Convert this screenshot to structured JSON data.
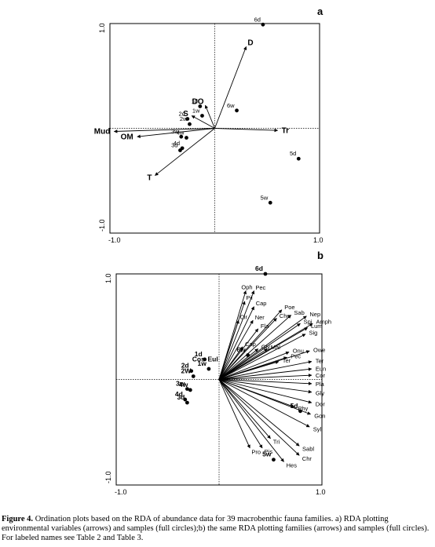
{
  "figure": {
    "caption_label": "Figure 4.",
    "caption_text": " Ordination plots based on the RDA of abundance data for 39 macrobenthic fauna families. a) RDA plotting environmental variables (arrows) and samples (full circles);b) the same RDA plotting families (arrows) and samples (full circles). For labeled names see Table 2 and Table 3."
  },
  "chart_data": [
    {
      "type": "scatter",
      "panel": "a",
      "xlim": [
        -1.0,
        1.0
      ],
      "ylim": [
        -1.0,
        1.0
      ],
      "x_tick_labels": [
        "-1.0",
        "1.0"
      ],
      "y_tick_labels": [
        "1.0",
        "-1.0"
      ],
      "arrows": [
        {
          "label": "D",
          "x": 0.3,
          "y": 0.78
        },
        {
          "label": "DO",
          "x": -0.09,
          "y": 0.22
        },
        {
          "label": "S",
          "x": -0.22,
          "y": 0.12
        },
        {
          "label": "Mud",
          "x": -0.96,
          "y": -0.03
        },
        {
          "label": "OM",
          "x": -0.74,
          "y": -0.08
        },
        {
          "label": "T",
          "x": -0.57,
          "y": -0.45
        },
        {
          "label": "Tr",
          "x": 0.6,
          "y": -0.02
        }
      ],
      "points": [
        {
          "label": "6d",
          "x": 0.46,
          "y": 0.99
        },
        {
          "label": "6w",
          "x": 0.21,
          "y": 0.17
        },
        {
          "label": "1d",
          "x": -0.14,
          "y": 0.21
        },
        {
          "label": "1w",
          "x": -0.12,
          "y": 0.12
        },
        {
          "label": "2d",
          "x": -0.26,
          "y": 0.09
        },
        {
          "label": "2w",
          "x": -0.24,
          "y": 0.04
        },
        {
          "label": "3w",
          "x": -0.32,
          "y": -0.08
        },
        {
          "label": "4w",
          "x": -0.27,
          "y": -0.09
        },
        {
          "label": "4d",
          "x": -0.31,
          "y": -0.19
        },
        {
          "label": "3d",
          "x": -0.33,
          "y": -0.21
        },
        {
          "label": "5d",
          "x": 0.8,
          "y": -0.29
        },
        {
          "label": "5w",
          "x": 0.53,
          "y": -0.71
        }
      ]
    },
    {
      "type": "scatter",
      "panel": "b",
      "xlim": [
        -1.0,
        1.0
      ],
      "ylim": [
        -1.0,
        1.0
      ],
      "x_tick_labels": [
        "-1.0",
        "1.0"
      ],
      "y_tick_labels": [
        "1.0",
        "-1.0"
      ],
      "arrows": [
        {
          "label": "Oph",
          "x": 0.26,
          "y": 0.84
        },
        {
          "label": "Pec",
          "x": 0.34,
          "y": 0.84
        },
        {
          "label": "Pil",
          "x": 0.25,
          "y": 0.74
        },
        {
          "label": "Cap",
          "x": 0.34,
          "y": 0.69
        },
        {
          "label": "Poe",
          "x": 0.61,
          "y": 0.66
        },
        {
          "label": "Ner",
          "x": 0.33,
          "y": 0.56
        },
        {
          "label": "Cir",
          "x": 0.19,
          "y": 0.56
        },
        {
          "label": "Che",
          "x": 0.56,
          "y": 0.58
        },
        {
          "label": "Sab",
          "x": 0.7,
          "y": 0.61
        },
        {
          "label": "Nep",
          "x": 0.85,
          "y": 0.6
        },
        {
          "label": "Spi",
          "x": 0.79,
          "y": 0.53
        },
        {
          "label": "Amph",
          "x": 0.91,
          "y": 0.53
        },
        {
          "label": "Lum",
          "x": 0.86,
          "y": 0.49
        },
        {
          "label": "Sig",
          "x": 0.84,
          "y": 0.43
        },
        {
          "label": "Fla",
          "x": 0.38,
          "y": 0.48
        },
        {
          "label": "Cap",
          "x": 0.23,
          "y": 0.31
        },
        {
          "label": "Mal",
          "x": 0.47,
          "y": 0.29
        },
        {
          "label": "Gly",
          "x": 0.38,
          "y": 0.29
        },
        {
          "label": "Onu",
          "x": 0.68,
          "y": 0.26
        },
        {
          "label": "Pec",
          "x": 0.66,
          "y": 0.21
        },
        {
          "label": "Ter",
          "x": 0.58,
          "y": 0.17
        },
        {
          "label": "Owe",
          "x": 0.88,
          "y": 0.27
        },
        {
          "label": "Ter",
          "x": 0.9,
          "y": 0.17
        },
        {
          "label": "Eun",
          "x": 0.9,
          "y": 0.1
        },
        {
          "label": "Cor",
          "x": 0.9,
          "y": 0.04
        },
        {
          "label": "Pla",
          "x": 0.9,
          "y": -0.04
        },
        {
          "label": "Gly",
          "x": 0.9,
          "y": -0.12
        },
        {
          "label": "Dor",
          "x": 0.9,
          "y": -0.22
        },
        {
          "label": "Phy",
          "x": 0.73,
          "y": -0.26
        },
        {
          "label": "Gon",
          "x": 0.89,
          "y": -0.33
        },
        {
          "label": "Syl",
          "x": 0.88,
          "y": -0.45
        },
        {
          "label": "Tri",
          "x": 0.5,
          "y": -0.56
        },
        {
          "label": "Pro",
          "x": 0.3,
          "y": -0.65
        },
        {
          "label": "Pis",
          "x": 0.42,
          "y": -0.65
        },
        {
          "label": "Sabl",
          "x": 0.78,
          "y": -0.63
        },
        {
          "label": "Chr",
          "x": 0.78,
          "y": -0.72
        },
        {
          "label": "Hes",
          "x": 0.63,
          "y": -0.78
        }
      ],
      "points": [
        {
          "label": "6d",
          "x": 0.45,
          "y": 1.0
        },
        {
          "label": "6w",
          "x": 0.28,
          "y": 0.23
        },
        {
          "label": "1d",
          "x": -0.14,
          "y": 0.19
        },
        {
          "label": "1w",
          "x": -0.1,
          "y": 0.1
        },
        {
          "label": "Cos",
          "x": -0.2,
          "y": 0.17
        },
        {
          "label": "Eul",
          "x": -0.06,
          "y": 0.17
        },
        {
          "label": "2d",
          "x": -0.27,
          "y": 0.08
        },
        {
          "label": "2W",
          "x": -0.25,
          "y": 0.03
        },
        {
          "label": "3w",
          "x": -0.31,
          "y": -0.09
        },
        {
          "label": "4w",
          "x": -0.28,
          "y": -0.1
        },
        {
          "label": "4d",
          "x": -0.33,
          "y": -0.19
        },
        {
          "label": "3d",
          "x": -0.31,
          "y": -0.22
        },
        {
          "label": "5d",
          "x": 0.79,
          "y": -0.3
        },
        {
          "label": "5w",
          "x": 0.53,
          "y": -0.76
        }
      ]
    }
  ]
}
